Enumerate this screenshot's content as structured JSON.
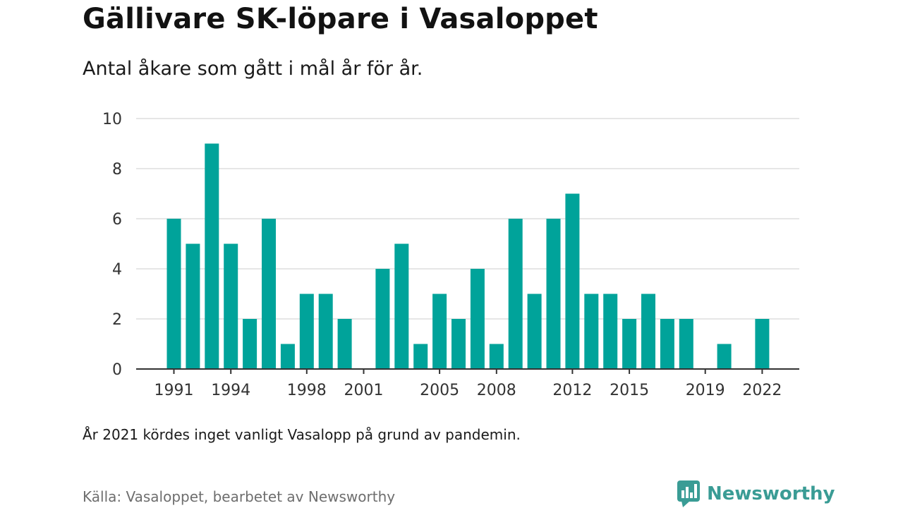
{
  "header": {
    "title": "Gällivare SK-löpare i Vasaloppet",
    "subtitle": "Antal åkare som gått i mål år för år."
  },
  "footer": {
    "note": "År 2021 kördes inget vanligt Vasalopp på grund av pandemin.",
    "source": "Källa: Vasaloppet, bearbetet av Newsworthy",
    "brand": "Newsworthy"
  },
  "icons": {
    "brand_logo": "newsworthy-logo-icon"
  },
  "colors": {
    "bar": "#00a39a",
    "grid": "#dddddd",
    "axis": "#333333",
    "brand": "#3a9c95"
  },
  "chart_data": {
    "type": "bar",
    "title": "Gällivare SK-löpare i Vasaloppet",
    "subtitle": "Antal åkare som gått i mål år för år.",
    "xlabel": "",
    "ylabel": "",
    "x": [
      1991,
      1992,
      1993,
      1994,
      1995,
      1996,
      1997,
      1998,
      1999,
      2000,
      2001,
      2002,
      2003,
      2004,
      2005,
      2006,
      2007,
      2008,
      2009,
      2010,
      2011,
      2012,
      2013,
      2014,
      2015,
      2016,
      2017,
      2018,
      2019,
      2020,
      2021,
      2022
    ],
    "values": [
      6,
      5,
      9,
      5,
      2,
      6,
      1,
      3,
      3,
      2,
      0,
      4,
      5,
      1,
      3,
      2,
      4,
      1,
      6,
      3,
      6,
      7,
      3,
      3,
      2,
      3,
      2,
      2,
      0,
      1,
      0,
      2
    ],
    "x_ticks": [
      1991,
      1994,
      1998,
      2001,
      2005,
      2008,
      2012,
      2015,
      2019,
      2022
    ],
    "y_ticks": [
      0,
      2,
      4,
      6,
      8,
      10
    ],
    "ylim": [
      0,
      10
    ],
    "grid": true,
    "legend": "none"
  }
}
